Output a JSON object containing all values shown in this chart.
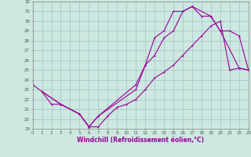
{
  "xlabel": "Windchill (Refroidissement éolien,°C)",
  "xlim": [
    0,
    23
  ],
  "ylim": [
    19,
    32
  ],
  "xticks": [
    0,
    1,
    2,
    3,
    4,
    5,
    6,
    7,
    8,
    9,
    10,
    11,
    12,
    13,
    14,
    15,
    16,
    17,
    18,
    19,
    20,
    21,
    22,
    23
  ],
  "yticks": [
    19,
    20,
    21,
    22,
    23,
    24,
    25,
    26,
    27,
    28,
    29,
    30,
    31,
    32
  ],
  "line_color": "#990099",
  "bg_color": "#cce8e0",
  "line1_x": [
    0,
    1,
    2,
    3,
    5,
    6,
    7,
    8,
    9,
    10,
    11,
    12,
    13,
    14,
    15,
    16,
    17,
    18,
    19,
    20,
    21,
    22,
    23
  ],
  "line1_y": [
    23.5,
    22.8,
    21.5,
    21.5,
    20.5,
    19.2,
    19.2,
    20.3,
    21.2,
    21.5,
    22.0,
    23.0,
    24.2,
    24.8,
    25.5,
    26.5,
    27.5,
    28.5,
    29.5,
    30.0,
    25.0,
    25.2,
    25.0
  ],
  "line2_x": [
    1,
    3,
    5,
    6,
    7,
    11,
    12,
    13,
    14,
    15,
    16,
    17,
    18,
    19,
    20,
    22,
    23
  ],
  "line2_y": [
    22.8,
    21.5,
    20.5,
    19.2,
    20.3,
    23.5,
    25.5,
    28.3,
    29.0,
    31.0,
    31.0,
    31.5,
    30.5,
    30.5,
    29.0,
    25.2,
    25.0
  ],
  "line3_x": [
    1,
    3,
    5,
    6,
    7,
    11,
    12,
    13,
    14,
    15,
    16,
    17,
    19,
    20,
    21,
    22,
    23
  ],
  "line3_y": [
    22.8,
    21.5,
    20.5,
    19.2,
    20.3,
    23.0,
    25.5,
    26.5,
    28.3,
    29.0,
    31.0,
    31.5,
    30.5,
    29.0,
    29.0,
    28.5,
    25.0
  ]
}
